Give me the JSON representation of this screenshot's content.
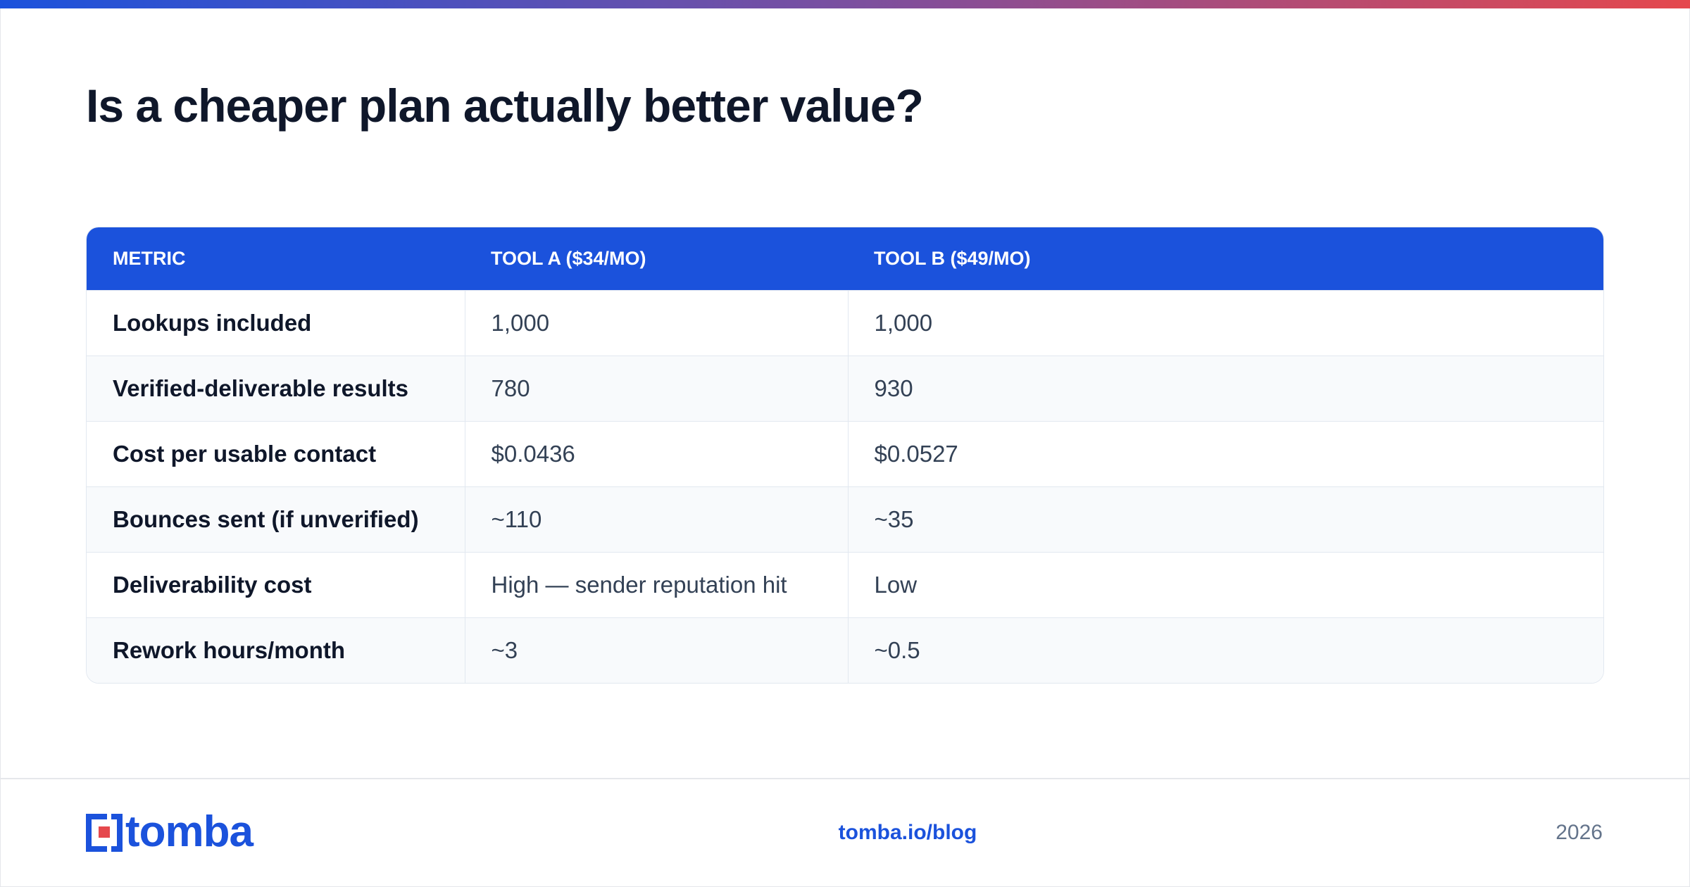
{
  "header": {
    "title": "Is a cheaper plan actually better value?"
  },
  "table": {
    "columns": [
      "METRIC",
      "TOOL A ($34/MO)",
      "TOOL B ($49/MO)"
    ],
    "rows": [
      [
        "Lookups included",
        "1,000",
        "1,000"
      ],
      [
        "Verified-deliverable results",
        "780",
        "930"
      ],
      [
        "Cost per usable contact",
        "$0.0436",
        "$0.0527"
      ],
      [
        "Bounces sent (if unverified)",
        "~110",
        "~35"
      ],
      [
        "Deliverability cost",
        "High — sender reputation hit",
        "Low"
      ],
      [
        "Rework hours/month",
        "~3",
        "~0.5"
      ]
    ]
  },
  "footer": {
    "logo": "tomba",
    "link": "tomba.io/blog",
    "year": "2026"
  }
}
